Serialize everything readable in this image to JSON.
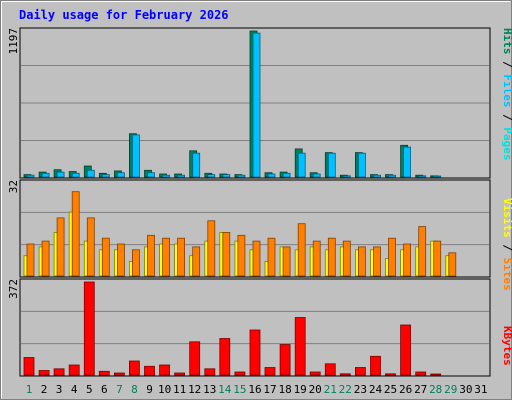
{
  "chart_data": [
    {
      "type": "bar",
      "title": "Daily usage for February 2026",
      "panel": "pages-files-hits",
      "ymax_label": "1197",
      "ylim": [
        0,
        1197
      ],
      "categories": [
        "1",
        "2",
        "3",
        "4",
        "5",
        "6",
        "7",
        "8",
        "9",
        "10",
        "11",
        "12",
        "13",
        "14",
        "15",
        "16",
        "17",
        "18",
        "19",
        "20",
        "21",
        "22",
        "23",
        "24",
        "25",
        "26",
        "27",
        "28",
        "29",
        "30",
        "31"
      ],
      "series": [
        {
          "name": "Hits",
          "values": [
            20,
            40,
            60,
            45,
            90,
            30,
            50,
            355,
            55,
            25,
            25,
            215,
            30,
            25,
            20,
            1197,
            35,
            40,
            230,
            35,
            200,
            15,
            200,
            20,
            20,
            260,
            15,
            10,
            0,
            0,
            0
          ]
        },
        {
          "name": "Files",
          "values": [
            15,
            30,
            40,
            30,
            55,
            20,
            35,
            345,
            35,
            15,
            15,
            195,
            20,
            20,
            15,
            1180,
            25,
            30,
            195,
            25,
            195,
            10,
            195,
            15,
            15,
            245,
            10,
            5,
            0,
            0,
            0
          ]
        },
        {
          "name": "Pages",
          "values": [
            0,
            0,
            0,
            0,
            0,
            0,
            0,
            0,
            0,
            0,
            0,
            0,
            0,
            0,
            0,
            0,
            0,
            0,
            0,
            0,
            0,
            0,
            0,
            0,
            0,
            0,
            0,
            0,
            0,
            0,
            0
          ]
        }
      ],
      "legend": [
        {
          "name": "Hits",
          "sep": ""
        },
        {
          "name": "Files",
          "sep": " / "
        },
        {
          "name": "Pages",
          "sep": " / "
        }
      ]
    },
    {
      "type": "bar",
      "panel": "sites-visits",
      "ymax_label": "32",
      "ylim": [
        0,
        32
      ],
      "categories": [
        "1",
        "2",
        "3",
        "4",
        "5",
        "6",
        "7",
        "8",
        "9",
        "10",
        "11",
        "12",
        "13",
        "14",
        "15",
        "16",
        "17",
        "18",
        "19",
        "20",
        "21",
        "22",
        "23",
        "24",
        "25",
        "26",
        "27",
        "28",
        "29",
        "30",
        "31"
      ],
      "series": [
        {
          "name": "Visits",
          "values": [
            7,
            10,
            15,
            22,
            12,
            9,
            9,
            5,
            10,
            11,
            11,
            7,
            12,
            15,
            12,
            9,
            5,
            10,
            9,
            10,
            9,
            10,
            9,
            9,
            6,
            9,
            10,
            12,
            7,
            0,
            0
          ]
        },
        {
          "name": "Sites",
          "values": [
            11,
            12,
            20,
            29,
            20,
            13,
            11,
            9,
            14,
            13,
            13,
            10,
            19,
            15,
            14,
            12,
            13,
            10,
            18,
            12,
            13,
            12,
            10,
            10,
            13,
            11,
            17,
            12,
            8,
            0,
            0
          ]
        }
      ],
      "legend": [
        {
          "name": "Visits",
          "sep": ""
        },
        {
          "name": "Sites",
          "sep": " / "
        }
      ]
    },
    {
      "type": "bar",
      "panel": "kbytes",
      "ymax_label": "372",
      "ylim": [
        0,
        372
      ],
      "categories": [
        "1",
        "2",
        "3",
        "4",
        "5",
        "6",
        "7",
        "8",
        "9",
        "10",
        "11",
        "12",
        "13",
        "14",
        "15",
        "16",
        "17",
        "18",
        "19",
        "20",
        "21",
        "22",
        "23",
        "24",
        "25",
        "26",
        "27",
        "28",
        "29",
        "30",
        "31"
      ],
      "series": [
        {
          "name": "KBytes",
          "values": [
            70,
            18,
            25,
            40,
            372,
            15,
            8,
            56,
            35,
            40,
            8,
            133,
            25,
            146,
            12,
            180,
            30,
            122,
            230,
            12,
            45,
            5,
            30,
            75,
            5,
            200,
            12,
            3,
            0,
            0,
            0
          ]
        }
      ],
      "legend": [
        {
          "name": "KBytes",
          "sep": ""
        }
      ]
    }
  ],
  "x_axis": {
    "labels": [
      "1",
      "2",
      "3",
      "4",
      "5",
      "6",
      "7",
      "8",
      "9",
      "10",
      "11",
      "12",
      "13",
      "14",
      "15",
      "16",
      "17",
      "18",
      "19",
      "20",
      "21",
      "22",
      "23",
      "24",
      "25",
      "26",
      "27",
      "28",
      "29",
      "30",
      "31"
    ],
    "weekend_days": [
      "1",
      "7",
      "8",
      "14",
      "15",
      "21",
      "22",
      "28",
      "29"
    ]
  },
  "colors": {
    "background": "#c0c0c0",
    "frame": "#808080",
    "title": "#0000ff",
    "hits": "#00805c",
    "files": "#00c0ff",
    "pages": "#00e0e0",
    "visits": "#ffff00",
    "sites": "#ff8000",
    "kbytes": "#ff0000",
    "weekend_label": "#00805c",
    "weekday_label": "#000000",
    "grid": "#808080"
  }
}
